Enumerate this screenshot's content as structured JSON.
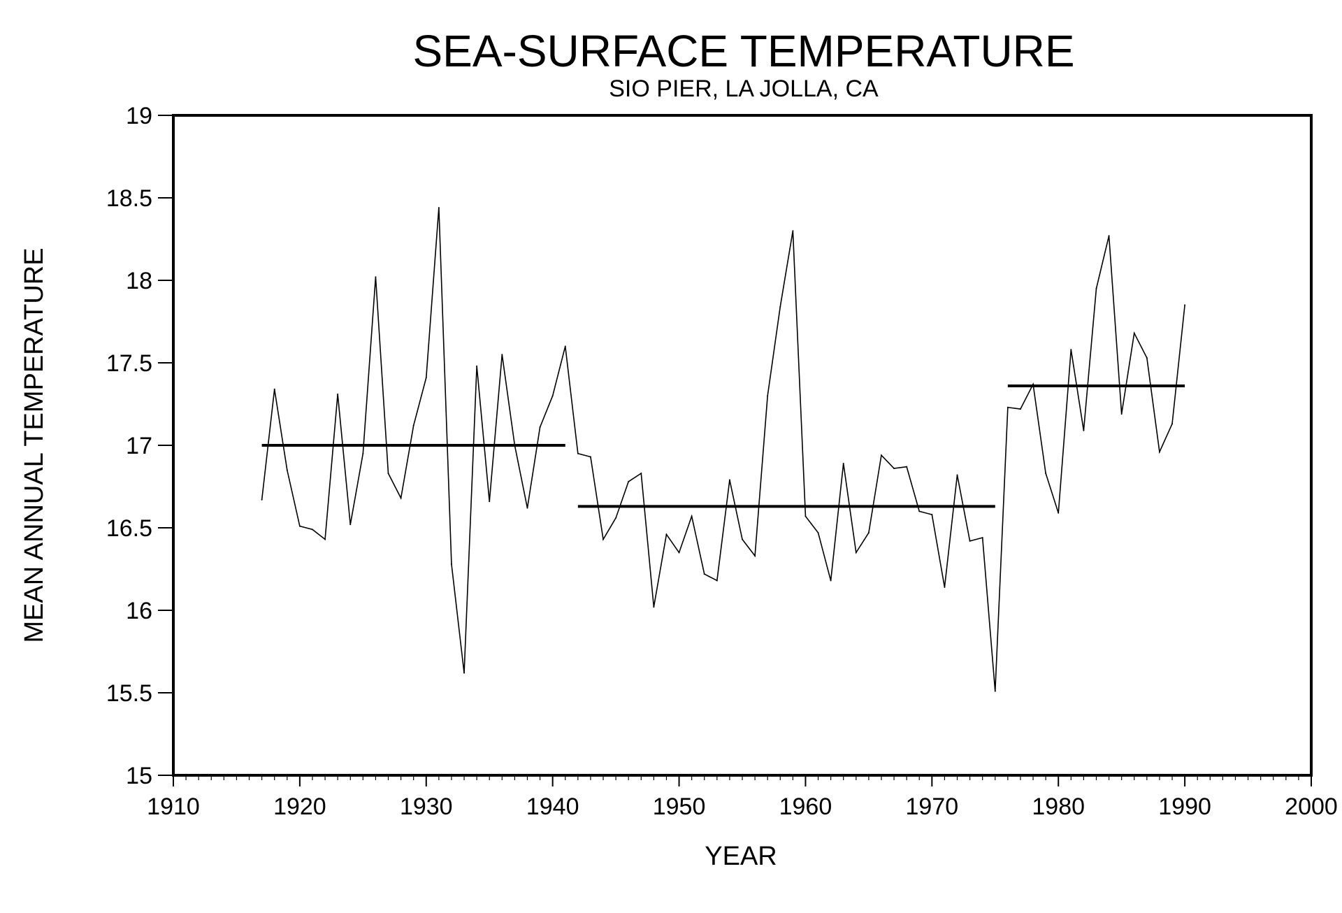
{
  "chart_data": {
    "type": "line",
    "title": "SEA-SURFACE TEMPERATURE",
    "subtitle": "SIO PIER, LA JOLLA, CA",
    "xlabel": "YEAR",
    "ylabel": "MEAN ANNUAL TEMPERATURE",
    "xlim": [
      1910,
      2000
    ],
    "ylim": [
      15,
      19
    ],
    "xticks": [
      "1910",
      "1920",
      "1930",
      "1940",
      "1950",
      "1960",
      "1970",
      "1980",
      "1990",
      "2000"
    ],
    "yticks": [
      "15",
      "15.5",
      "16",
      "16.5",
      "17",
      "17.5",
      "18",
      "18.5",
      "19"
    ],
    "grid": false,
    "series": [
      {
        "x": [
          1917,
          1918,
          1919,
          1920,
          1921,
          1922,
          1923,
          1924,
          1925,
          1926,
          1927,
          1928,
          1929,
          1930,
          1931,
          1932,
          1933,
          1934,
          1935,
          1936,
          1937,
          1938,
          1939,
          1940,
          1941,
          1942,
          1943,
          1944,
          1945,
          1946,
          1947,
          1948,
          1949,
          1950,
          1951,
          1952,
          1953,
          1954,
          1955,
          1956,
          1957,
          1958,
          1959,
          1960,
          1961,
          1962,
          1963,
          1964,
          1965,
          1966,
          1967,
          1968,
          1969,
          1970,
          1971,
          1972,
          1973,
          1974,
          1975,
          1976,
          1977,
          1978,
          1979,
          1980,
          1981,
          1982,
          1983,
          1984,
          1985,
          1986,
          1987,
          1988,
          1989,
          1990
        ],
        "values": [
          16.67,
          17.34,
          16.85,
          16.51,
          16.49,
          16.43,
          17.31,
          16.52,
          16.95,
          18.02,
          16.83,
          16.68,
          17.12,
          17.41,
          18.44,
          16.28,
          15.62,
          17.48,
          16.66,
          17.55,
          17.0,
          16.62,
          17.11,
          17.3,
          17.6,
          16.95,
          16.93,
          16.43,
          16.56,
          16.78,
          16.83,
          16.02,
          16.46,
          16.35,
          16.57,
          16.22,
          16.18,
          16.79,
          16.43,
          16.33,
          17.3,
          17.84,
          18.3,
          16.57,
          16.47,
          16.18,
          16.89,
          16.35,
          16.47,
          16.94,
          16.86,
          16.87,
          16.6,
          16.58,
          16.14,
          16.82,
          16.42,
          16.44,
          15.51,
          17.23,
          17.22,
          17.37,
          16.83,
          16.59,
          17.58,
          17.09,
          17.95,
          18.27,
          17.19,
          17.68,
          17.53,
          16.96,
          17.13,
          17.85
        ]
      }
    ],
    "mean_lines": [
      {
        "x": [
          1917,
          1941
        ],
        "value": 17.0
      },
      {
        "x": [
          1942,
          1975
        ],
        "value": 16.63
      },
      {
        "x": [
          1976,
          1990
        ],
        "value": 17.36
      }
    ]
  }
}
